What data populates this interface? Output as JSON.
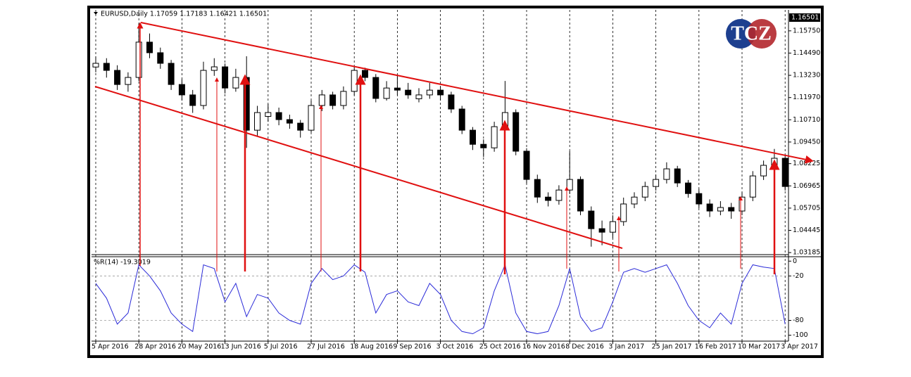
{
  "chart_data": [
    {
      "type": "candlestick",
      "title": "EURUSD,Daily  1.17059 1.17183 1.16421 1.16501",
      "last_price": 1.16501,
      "logo": "TCZ",
      "categories": [
        "5 Apr 2016",
        null,
        null,
        null,
        "28 Apr 2016",
        null,
        null,
        null,
        "20 May 2016",
        null,
        null,
        null,
        "13 Jun 2016",
        null,
        null,
        null,
        "5 Jul 2016",
        null,
        null,
        null,
        "27 Jul 2016",
        null,
        null,
        null,
        "18 Aug 2016",
        null,
        null,
        null,
        "9 Sep 2016",
        null,
        null,
        null,
        "3 Oct 2016",
        null,
        null,
        null,
        "25 Oct 2016",
        null,
        null,
        null,
        "16 Nov 2016",
        null,
        null,
        null,
        "8 Dec 2016",
        null,
        null,
        null,
        "3 Jan 2017",
        null,
        null,
        null,
        "25 Jan 2017",
        null,
        null,
        null,
        "16 Feb 2017",
        null,
        null,
        null,
        "10 Mar 2017",
        null,
        null,
        null,
        "3 Apr 2017"
      ],
      "open": [
        1.137,
        1.1391,
        1.1351,
        1.1271,
        1.1311,
        1.1511,
        1.1451,
        1.1391,
        1.1271,
        1.1212,
        1.1152,
        1.1351,
        1.1371,
        1.1251,
        1.1311,
        1.1012,
        1.109,
        1.1112,
        1.1072,
        1.1052,
        1.1012,
        1.1152,
        1.1212,
        1.1152,
        1.1232,
        1.1351,
        1.1311,
        1.1192,
        1.1251,
        1.1239,
        1.119,
        1.1212,
        1.1239,
        1.1212,
        1.1132,
        1.1012,
        1.0932,
        1.0912,
        1.1032,
        1.1112,
        1.0893,
        1.0733,
        1.0633,
        1.0614,
        1.0673,
        1.0733,
        1.0554,
        1.0454,
        1.0434,
        1.0494,
        1.0594,
        1.0633,
        1.0693,
        1.0733,
        1.0793,
        1.0713,
        1.0653,
        1.0594,
        1.0554,
        1.0574,
        1.0554,
        1.0633,
        1.0753,
        1.0813,
        1.0853
      ],
      "high": [
        1.143,
        1.142,
        1.138,
        1.134,
        1.1616,
        1.156,
        1.148,
        1.141,
        1.13,
        1.124,
        1.14,
        1.142,
        1.139,
        1.136,
        1.1431,
        1.115,
        1.116,
        1.114,
        1.11,
        1.107,
        1.118,
        1.124,
        1.123,
        1.126,
        1.137,
        1.1366,
        1.133,
        1.129,
        1.1327,
        1.128,
        1.125,
        1.128,
        1.126,
        1.123,
        1.115,
        1.103,
        1.096,
        1.106,
        1.1291,
        1.113,
        1.091,
        1.076,
        1.066,
        1.07,
        1.0893,
        1.075,
        1.058,
        1.05,
        1.053,
        1.063,
        1.066,
        1.072,
        1.076,
        1.083,
        1.081,
        1.073,
        1.068,
        1.062,
        1.061,
        1.06,
        1.066,
        1.078,
        1.084,
        1.0906,
        1.087
      ],
      "low": [
        1.134,
        1.131,
        1.124,
        1.123,
        1.129,
        1.142,
        1.136,
        1.124,
        1.118,
        1.111,
        1.113,
        1.132,
        1.122,
        1.123,
        1.0912,
        1.098,
        1.106,
        1.104,
        1.102,
        1.097,
        1.1,
        1.112,
        1.113,
        1.113,
        1.121,
        1.129,
        1.117,
        1.118,
        1.121,
        1.119,
        1.117,
        1.119,
        1.118,
        1.111,
        1.099,
        1.09,
        1.086,
        1.089,
        1.101,
        1.087,
        1.071,
        1.06,
        1.058,
        1.059,
        1.065,
        1.053,
        1.0352,
        1.036,
        1.04,
        1.047,
        1.057,
        1.061,
        1.067,
        1.071,
        1.069,
        1.063,
        1.057,
        1.052,
        1.053,
        1.051,
        1.053,
        1.061,
        1.073,
        1.079,
        1.067
      ],
      "close": [
        1.1391,
        1.1351,
        1.1271,
        1.1311,
        1.1511,
        1.1451,
        1.1391,
        1.1271,
        1.1212,
        1.1152,
        1.1351,
        1.1371,
        1.1251,
        1.1311,
        1.1012,
        1.1112,
        1.1112,
        1.1072,
        1.1052,
        1.1012,
        1.1152,
        1.1212,
        1.1152,
        1.1232,
        1.1351,
        1.1311,
        1.1192,
        1.1251,
        1.1239,
        1.1212,
        1.1212,
        1.1239,
        1.1212,
        1.1132,
        1.1012,
        1.0932,
        1.0912,
        1.1032,
        1.1112,
        1.0893,
        1.0733,
        1.0633,
        1.0614,
        1.0673,
        1.0733,
        1.0554,
        1.0454,
        1.0434,
        1.0494,
        1.0594,
        1.0633,
        1.0693,
        1.0733,
        1.0793,
        1.0713,
        1.0653,
        1.0594,
        1.0554,
        1.0574,
        1.0554,
        1.0633,
        1.0753,
        1.0813,
        1.0853,
        1.0693
      ],
      "ylim": [
        1.0307,
        1.1682
      ],
      "yticks": [
        {
          "value": 1.1575,
          "label": "1.15750"
        },
        {
          "value": 1.1449,
          "label": "1.14490"
        },
        {
          "value": 1.1323,
          "label": "1.13230"
        },
        {
          "value": 1.1197,
          "label": "1.11970"
        },
        {
          "value": 1.1071,
          "label": "1.10710"
        },
        {
          "value": 1.0945,
          "label": "1.09450"
        },
        1.08225,
        1.06965,
        1.05705,
        1.04445,
        1.03185
      ],
      "grid": true
    },
    {
      "type": "line",
      "title": "%R(14) -19.3019",
      "color": "#2a2ad8",
      "values": [
        -30,
        -50,
        -85,
        -70,
        -5,
        -20,
        -40,
        -70,
        -85,
        -95,
        -5,
        -10,
        -55,
        -30,
        -75,
        -45,
        -50,
        -70,
        -80,
        -85,
        -30,
        -10,
        -25,
        -20,
        -5,
        -15,
        -70,
        -45,
        -40,
        -55,
        -60,
        -30,
        -45,
        -80,
        -95,
        -98,
        -90,
        -40,
        -5,
        -70,
        -95,
        -98,
        -95,
        -60,
        -10,
        -75,
        -95,
        -90,
        -55,
        -15,
        -10,
        -15,
        -10,
        -5,
        -30,
        -60,
        -80,
        -90,
        -70,
        -85,
        -30,
        -5,
        -8,
        -10,
        -85
      ],
      "ylim": [
        -108,
        5
      ],
      "yticks": [
        0,
        -20,
        -80,
        -100
      ],
      "levels": [
        -20,
        -80
      ]
    }
  ]
}
